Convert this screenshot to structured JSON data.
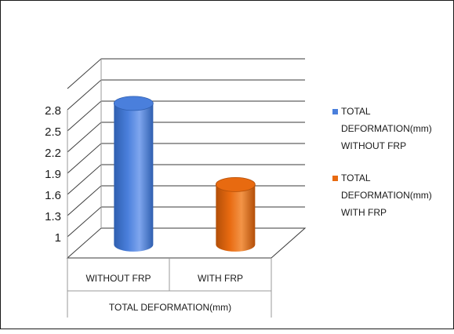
{
  "chart_data": {
    "type": "bar",
    "title": "",
    "xlabel": "TOTAL DEFORMATION(mm)",
    "ylabel": "",
    "categories": [
      "WITHOUT FRP",
      "WITH FRP"
    ],
    "group_label": "TOTAL DEFORMATION(mm)",
    "series": [
      {
        "name": "TOTAL DEFORMATION(mm) WITHOUT FRP",
        "legend_lines": [
          "TOTAL",
          "DEFORMATION(mm)",
          "WITHOUT FRP"
        ],
        "values": [
          2.7,
          null
        ],
        "color": "#4a7fdc",
        "dark": "#2f5fb0",
        "light": "#7fa6ee"
      },
      {
        "name": "TOTAL DEFORMATION(mm) WITH FRP",
        "legend_lines": [
          "TOTAL",
          "DEFORMATION(mm)",
          "WITH FRP"
        ],
        "values": [
          null,
          1.55
        ],
        "color": "#e86a10",
        "dark": "#b34f08",
        "light": "#f39447"
      }
    ],
    "yticks": [
      "1",
      "1.3",
      "1.6",
      "1.9",
      "2.2",
      "2.5",
      "2.8"
    ],
    "ytick_values": [
      1,
      1.3,
      1.6,
      1.9,
      2.2,
      2.5,
      2.8
    ],
    "ylim": [
      0.7,
      2.8
    ],
    "grid": true,
    "legend_position": "right",
    "three_d": true,
    "bar_shape": "cylinder"
  }
}
